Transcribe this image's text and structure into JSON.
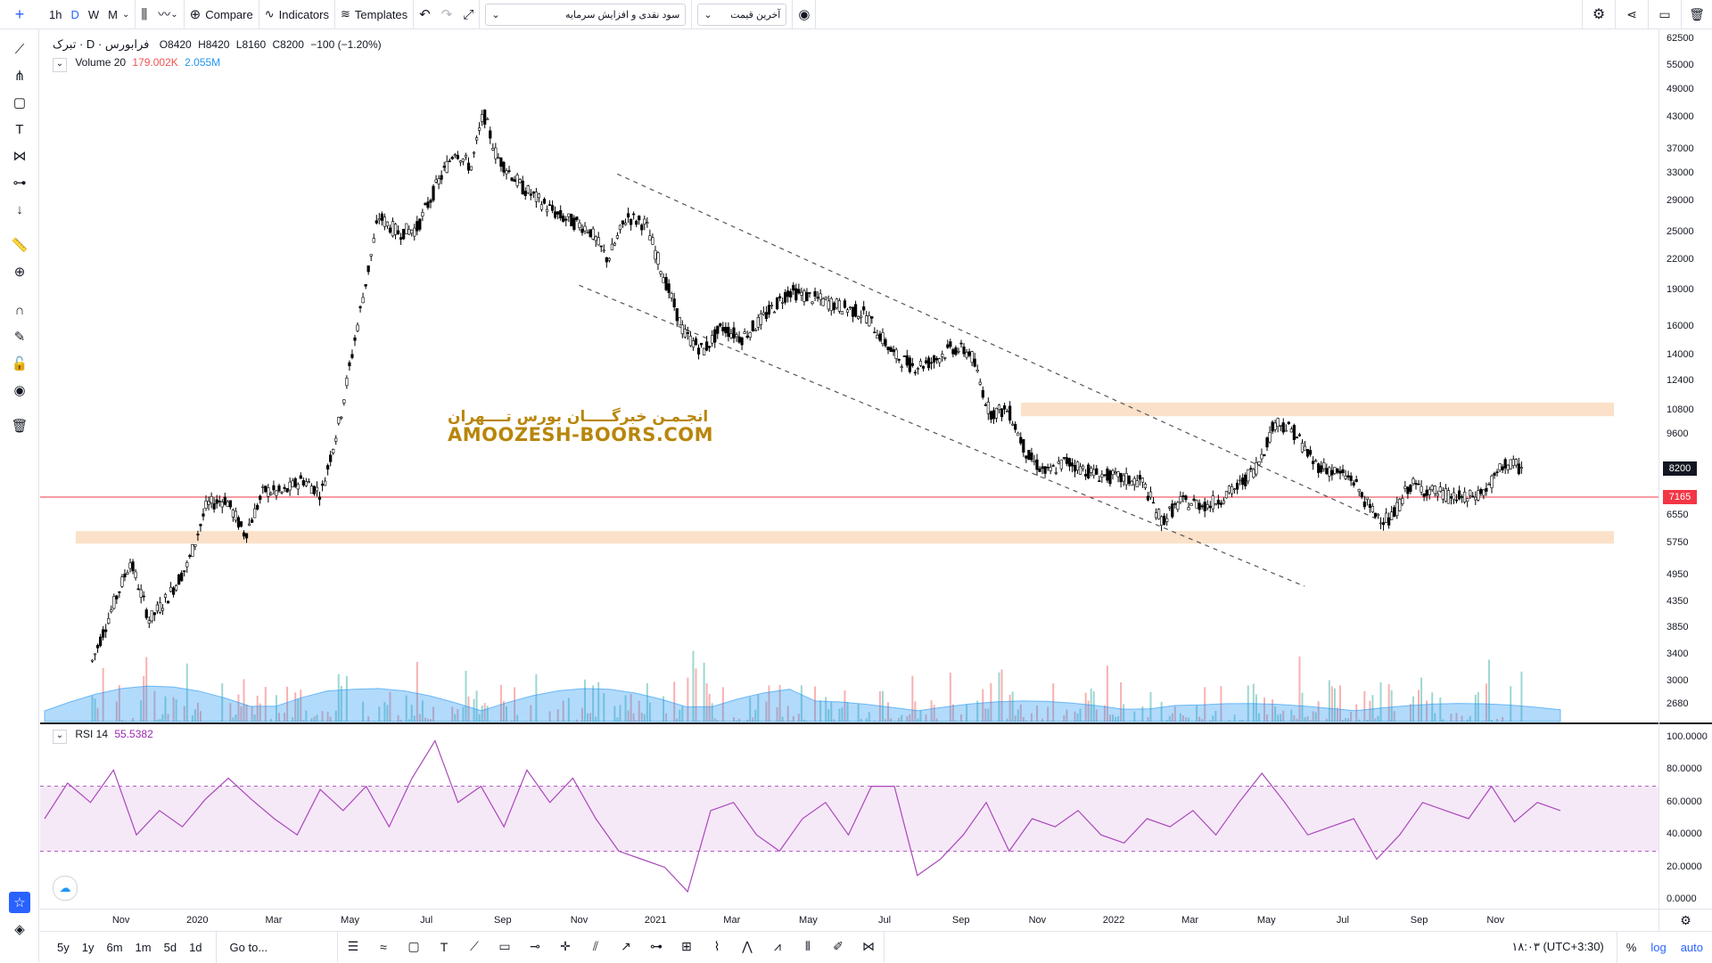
{
  "toolbar": {
    "timeframes": [
      "1h",
      "D",
      "W",
      "M"
    ],
    "compare_label": "Compare",
    "indicators_label": "Indicators",
    "templates_label": "Templates",
    "symbol_dropdown": "سود نقدی و افزایش سرمایه",
    "price_dropdown": "آخرین قیمت"
  },
  "legend": {
    "symbol": "تبرک · D · فرابورس",
    "open": "O8420",
    "high": "H8420",
    "low": "L8160",
    "close": "C8200",
    "change": "−100 (−1.20%)",
    "volume_label": "Volume 20",
    "volume_value1": "179.002K",
    "volume_value2": "2.055M"
  },
  "rsi_legend": {
    "label": "RSI 14",
    "value": "55.5382"
  },
  "watermark": {
    "line1": "انجـمـن خبرگـــــان بورس تــــهران",
    "line2": "AMOOZESH-BOORS.COM"
  },
  "price_axis": {
    "ticks": [
      "62500",
      "55000",
      "49000",
      "43000",
      "37000",
      "33000",
      "29000",
      "25000",
      "22000",
      "19000",
      "16000",
      "14000",
      "12400",
      "10800",
      "9600",
      "8200",
      "6550",
      "5750",
      "4950",
      "4350",
      "3850",
      "3400",
      "3000",
      "2680"
    ],
    "last_price_tag": "8200",
    "support_tag": "7165"
  },
  "rsi_axis": {
    "ticks": [
      "100.0000",
      "80.0000",
      "60.0000",
      "40.0000",
      "20.0000",
      "0.0000"
    ]
  },
  "time_axis": {
    "labels": [
      "Nov",
      "2020",
      "Mar",
      "May",
      "Jul",
      "Sep",
      "Nov",
      "2021",
      "Mar",
      "May",
      "Jul",
      "Sep",
      "Nov",
      "2022",
      "Mar",
      "May",
      "Jul",
      "Sep",
      "Nov"
    ]
  },
  "bottom": {
    "ranges": [
      "5y",
      "1y",
      "6m",
      "1m",
      "5d",
      "1d"
    ],
    "goto_label": "Go to...",
    "timezone": "۱۸:۰۳ (UTC+3:30)",
    "percent": "%",
    "log": "log",
    "auto": "auto"
  },
  "colors": {
    "accent": "#2962ff",
    "up": "#26a69a",
    "down": "#ef5350",
    "support_line": "#f23645",
    "zone": "#fbe1c9",
    "rsi": "#9c27b0"
  },
  "chart_data": {
    "type": "candlestick",
    "price_scale": "log",
    "ylim": [
      2500,
      64000
    ],
    "close_path": [
      {
        "date": "2019-10",
        "close": 3300
      },
      {
        "date": "2019-10",
        "close": 4200
      },
      {
        "date": "2019-11",
        "close": 5300
      },
      {
        "date": "2019-11",
        "close": 4000
      },
      {
        "date": "2019-12",
        "close": 4500
      },
      {
        "date": "2019-12",
        "close": 5200
      },
      {
        "date": "2020-01",
        "close": 6900
      },
      {
        "date": "2020-01",
        "close": 7100
      },
      {
        "date": "2020-02",
        "close": 6000
      },
      {
        "date": "2020-02",
        "close": 7400
      },
      {
        "date": "2020-03",
        "close": 7300
      },
      {
        "date": "2020-03",
        "close": 7800
      },
      {
        "date": "2020-04",
        "close": 7300
      },
      {
        "date": "2020-04",
        "close": 10500
      },
      {
        "date": "2020-05",
        "close": 17000
      },
      {
        "date": "2020-05",
        "close": 27000
      },
      {
        "date": "2020-06",
        "close": 25000
      },
      {
        "date": "2020-06",
        "close": 25500
      },
      {
        "date": "2020-07",
        "close": 31000
      },
      {
        "date": "2020-07",
        "close": 37000
      },
      {
        "date": "2020-08",
        "close": 34000
      },
      {
        "date": "2020-08",
        "close": 44000
      },
      {
        "date": "2020-08",
        "close": 36000
      },
      {
        "date": "2020-09",
        "close": 31000
      },
      {
        "date": "2020-10",
        "close": 27000
      },
      {
        "date": "2020-11",
        "close": 25500
      },
      {
        "date": "2020-11",
        "close": 22000
      },
      {
        "date": "2020-12",
        "close": 27000
      },
      {
        "date": "2020-12",
        "close": 26000
      },
      {
        "date": "2021-01",
        "close": 20000
      },
      {
        "date": "2021-01",
        "close": 15500
      },
      {
        "date": "2021-02",
        "close": 14300
      },
      {
        "date": "2021-02",
        "close": 16000
      },
      {
        "date": "2021-03",
        "close": 15200
      },
      {
        "date": "2021-03",
        "close": 16500
      },
      {
        "date": "2021-04",
        "close": 19000
      },
      {
        "date": "2021-05",
        "close": 18000
      },
      {
        "date": "2021-06",
        "close": 17000
      },
      {
        "date": "2021-07",
        "close": 14000
      },
      {
        "date": "2021-07",
        "close": 13300
      },
      {
        "date": "2021-08",
        "close": 13600
      },
      {
        "date": "2021-08",
        "close": 14500
      },
      {
        "date": "2021-09",
        "close": 14200
      },
      {
        "date": "2021-09",
        "close": 10700
      },
      {
        "date": "2021-10",
        "close": 10800
      },
      {
        "date": "2021-10",
        "close": 8700
      },
      {
        "date": "2021-11",
        "close": 8000
      },
      {
        "date": "2021-11",
        "close": 8500
      },
      {
        "date": "2021-12",
        "close": 8000
      },
      {
        "date": "2022-01",
        "close": 7800
      },
      {
        "date": "2022-01",
        "close": 7700
      },
      {
        "date": "2022-02",
        "close": 6400
      },
      {
        "date": "2022-02",
        "close": 7000
      },
      {
        "date": "2022-03",
        "close": 6900
      },
      {
        "date": "2022-04",
        "close": 7500
      },
      {
        "date": "2022-04",
        "close": 8300
      },
      {
        "date": "2022-05",
        "close": 10300
      },
      {
        "date": "2022-05",
        "close": 9700
      },
      {
        "date": "2022-06",
        "close": 8400
      },
      {
        "date": "2022-06",
        "close": 8100
      },
      {
        "date": "2022-07",
        "close": 7800
      },
      {
        "date": "2022-07",
        "close": 6700
      },
      {
        "date": "2022-08",
        "close": 6400
      },
      {
        "date": "2022-08",
        "close": 7600
      },
      {
        "date": "2022-09",
        "close": 7400
      },
      {
        "date": "2022-09",
        "close": 7200
      },
      {
        "date": "2022-10",
        "close": 7100
      },
      {
        "date": "2022-10",
        "close": 7400
      },
      {
        "date": "2022-11",
        "close": 8400
      },
      {
        "date": "2022-11",
        "close": 8200
      }
    ],
    "horizontal_lines": [
      {
        "price": 7165,
        "color": "#f23645"
      }
    ],
    "zones": [
      {
        "from": 10500,
        "to": 11200
      },
      {
        "from": 5750,
        "to": 6100
      }
    ],
    "trend_lines": [
      {
        "from": {
          "date": "2020-12",
          "price": 33000
        },
        "to": {
          "date": "2022-08",
          "price": 6400
        }
      },
      {
        "from": {
          "date": "2020-11",
          "price": 19500
        },
        "to": {
          "date": "2022-06",
          "price": 4700
        }
      }
    ],
    "rsi": {
      "ylim": [
        0,
        100
      ],
      "bands": [
        30,
        70
      ],
      "values": [
        50,
        72,
        60,
        80,
        40,
        55,
        45,
        62,
        75,
        62,
        50,
        40,
        68,
        55,
        70,
        45,
        75,
        98,
        60,
        70,
        45,
        80,
        60,
        75,
        50,
        30,
        25,
        20,
        5,
        55,
        60,
        40,
        30,
        50,
        60,
        40,
        70,
        70,
        15,
        25,
        40,
        60,
        30,
        50,
        45,
        55,
        40,
        35,
        50,
        45,
        55,
        40,
        60,
        78,
        60,
        40,
        45,
        50,
        25,
        40,
        60,
        55,
        50,
        70,
        48,
        60,
        55
      ]
    }
  }
}
